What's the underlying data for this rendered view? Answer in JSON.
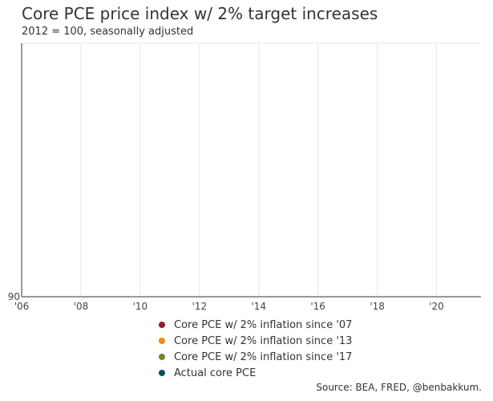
{
  "chart_data": {
    "type": "line",
    "title": "Core PCE price index w/ 2% target increases",
    "subtitle": "2012 = 100, seasonally adjusted",
    "x_ticks": [
      "'06",
      "'08",
      "'10",
      "'12",
      "'14",
      "'16",
      "'18",
      "'20"
    ],
    "x_tick_years": [
      2006,
      2008,
      2010,
      2012,
      2014,
      2016,
      2018,
      2020
    ],
    "xlim": [
      2006,
      2021.5
    ],
    "y_ticks": [
      "90"
    ],
    "y_tick_values": [
      90
    ],
    "grid": true,
    "legend_position": "bottom",
    "series": [
      {
        "name": "Core PCE w/ 2% inflation since '07",
        "color": "#a3172c",
        "values": []
      },
      {
        "name": "Core PCE w/ 2% inflation since '13",
        "color": "#f28c00",
        "values": []
      },
      {
        "name": "Core PCE w/ 2% inflation since '17",
        "color": "#6b8e23",
        "values": []
      },
      {
        "name": "Actual core PCE",
        "color": "#0b4f6c",
        "values": []
      }
    ],
    "source": "Source: BEA, FRED, @benbakkum."
  }
}
